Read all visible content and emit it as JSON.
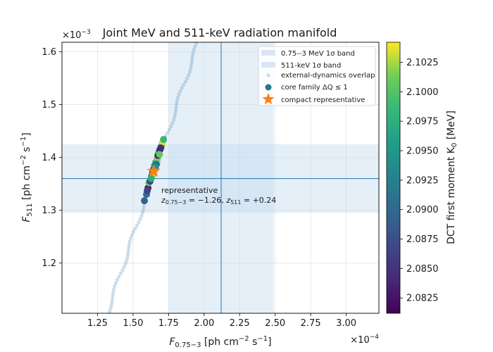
{
  "chart_data": {
    "type": "scatter",
    "title": "Joint MeV and 511-keV radiation manifold",
    "xlabel": {
      "main": "F",
      "sub": "0.75−3",
      "unit": " [ph cm",
      "exp": "−2",
      "unit2": " s",
      "exp2": "−1",
      "unit3": "]"
    },
    "ylabel": {
      "main": "F",
      "sub": "511",
      "unit": " [ph cm",
      "exp": "−2",
      "unit2": " s",
      "exp2": "−1",
      "unit3": "]"
    },
    "x_multiplier": {
      "base": "×10",
      "exp": "−4"
    },
    "y_multiplier": {
      "base": "×10",
      "exp": "−3"
    },
    "xlim": [
      1.0,
      3.23
    ],
    "ylim": [
      1.105,
      1.618
    ],
    "x_ticks": [
      1.25,
      1.5,
      1.75,
      2.0,
      2.25,
      2.5,
      2.75,
      3.0
    ],
    "x_tick_labels": [
      "1.25",
      "1.50",
      "1.75",
      "2.00",
      "2.25",
      "2.50",
      "2.75",
      "3.00"
    ],
    "y_ticks": [
      1.2,
      1.3,
      1.4,
      1.5,
      1.6
    ],
    "y_tick_labels": [
      "1.2",
      "1.3",
      "1.4",
      "1.5",
      "1.6"
    ],
    "grid": true,
    "bands": {
      "mev": {
        "label": "0.75--3 MeV 1σ band",
        "x_range": [
          1.75,
          2.49
        ],
        "center": 2.12
      },
      "kev511": {
        "label": "511-keV 1σ band",
        "y_range": [
          1.295,
          1.425
        ],
        "center": 1.36
      }
    },
    "overlap": {
      "label": "external-dynamics overlap",
      "line_start": [
        1.3,
        1.09
      ],
      "line_end": [
        1.97,
        1.628
      ],
      "count": 90
    },
    "core_family": {
      "label": "core family ΔQ ≤ 1",
      "points": [
        [
          1.58,
          1.318,
          2.0895
        ],
        [
          1.595,
          1.33,
          2.0905
        ],
        [
          1.605,
          1.342,
          2.0835
        ],
        [
          1.612,
          1.352,
          2.1005
        ],
        [
          1.62,
          1.355,
          2.0865
        ],
        [
          1.63,
          1.364,
          2.0915
        ],
        [
          1.638,
          1.371,
          2.0845
        ],
        [
          1.645,
          1.378,
          2.0885
        ],
        [
          1.652,
          1.385,
          2.0935
        ],
        [
          1.66,
          1.391,
          2.0975
        ],
        [
          1.67,
          1.398,
          2.1015
        ],
        [
          1.675,
          1.404,
          2.0835
        ],
        [
          1.682,
          1.41,
          2.0955
        ],
        [
          1.69,
          1.415,
          2.0825
        ],
        [
          1.7,
          1.422,
          2.0995
        ],
        [
          1.708,
          1.429,
          2.1035
        ],
        [
          1.715,
          1.434,
          2.0985
        ],
        [
          1.6,
          1.337,
          2.0865
        ],
        [
          1.642,
          1.368,
          2.1025
        ],
        [
          1.664,
          1.387,
          2.0905
        ],
        [
          1.686,
          1.406,
          2.1005
        ],
        [
          1.695,
          1.418,
          2.0845
        ],
        [
          1.627,
          1.36,
          2.0975
        ],
        [
          1.657,
          1.381,
          2.0945
        ]
      ]
    },
    "representative": {
      "label": "compact representative",
      "x": 1.645,
      "y": 1.374,
      "annotation": "representative",
      "annotation_line2": {
        "z1": "z",
        "z1_sub": "0.75−3",
        "z1_val": " = −1.26, ",
        "z2": "z",
        "z2_sub": "511",
        "z2_val": " = +0.24"
      }
    },
    "colorbar": {
      "label": "DCT first moment K",
      "label_sub": "0",
      "label_unit": " [MeV]",
      "range": [
        2.0812,
        2.1042
      ],
      "ticks": [
        2.0825,
        2.085,
        2.0875,
        2.09,
        2.0925,
        2.095,
        2.0975,
        2.1,
        2.1025
      ],
      "tick_labels": [
        "2.0825",
        "2.0850",
        "2.0875",
        "2.0900",
        "2.0925",
        "2.0950",
        "2.0975",
        "2.1000",
        "2.1025"
      ],
      "colormap": "viridis"
    },
    "legend_position": "top-right",
    "colors": {
      "accent": "#1f77b4",
      "band": "#c6dbef",
      "star": "#ff7f0e",
      "overlap": "#4f8fbe"
    }
  }
}
